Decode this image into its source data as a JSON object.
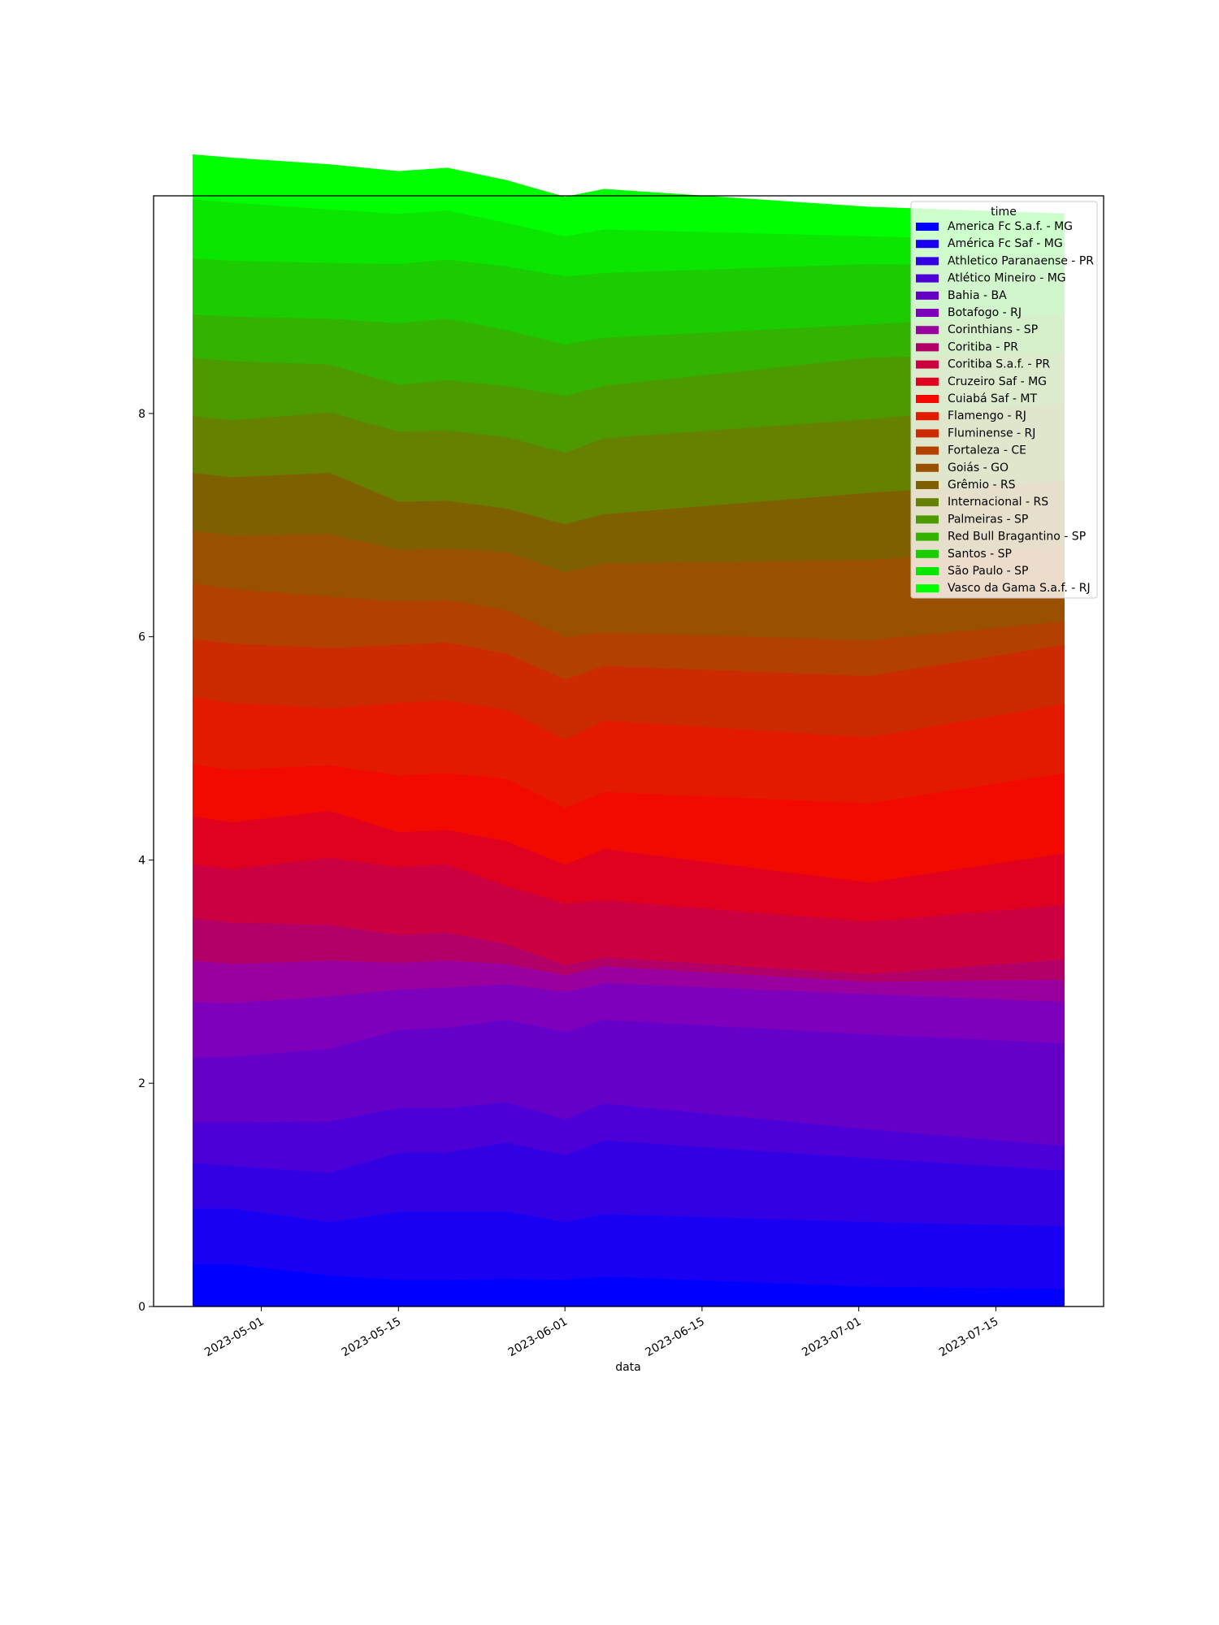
{
  "chart_data": {
    "type": "area",
    "stacked": true,
    "xlabel": "data",
    "ylabel": "",
    "xlim": [
      "2023-04-20",
      "2023-07-26"
    ],
    "ylim": [
      0,
      9.95
    ],
    "x_ticks": [
      "2023-05-01",
      "2023-05-15",
      "2023-06-01",
      "2023-06-15",
      "2023-07-01",
      "2023-07-15"
    ],
    "y_ticks": [
      0,
      2,
      4,
      6,
      8
    ],
    "grid": false,
    "legend": {
      "title": "time",
      "position": "top-right"
    },
    "x": [
      "2023-04-24",
      "2023-04-28",
      "2023-05-08",
      "2023-05-15",
      "2023-05-20",
      "2023-05-26",
      "2023-06-01",
      "2023-06-05",
      "2023-07-02",
      "2023-07-22"
    ],
    "series": [
      {
        "name": "America Fc S.a.f. - MG",
        "color": "#0000ff",
        "values": [
          0.38,
          0.38,
          0.28,
          0.24,
          0.24,
          0.25,
          0.24,
          0.27,
          0.18,
          0.16
        ]
      },
      {
        "name": "América Fc Saf - MG",
        "color": "#1a00f2",
        "values": [
          0.5,
          0.5,
          0.48,
          0.61,
          0.61,
          0.6,
          0.52,
          0.56,
          0.58,
          0.56
        ]
      },
      {
        "name": "Athletico Paranaense - PR",
        "color": "#3300e4",
        "values": [
          0.41,
          0.38,
          0.44,
          0.53,
          0.53,
          0.62,
          0.6,
          0.66,
          0.57,
          0.5
        ]
      },
      {
        "name": "Atlético Mineiro - MG",
        "color": "#4c00d7",
        "values": [
          0.36,
          0.39,
          0.46,
          0.4,
          0.4,
          0.36,
          0.32,
          0.33,
          0.26,
          0.22
        ]
      },
      {
        "name": "Bahia - BA",
        "color": "#6600c9",
        "values": [
          0.58,
          0.59,
          0.65,
          0.7,
          0.72,
          0.74,
          0.78,
          0.75,
          0.85,
          0.92
        ]
      },
      {
        "name": "Botafogo - RJ",
        "color": "#7f00bc",
        "values": [
          0.5,
          0.48,
          0.47,
          0.36,
          0.36,
          0.32,
          0.36,
          0.33,
          0.36,
          0.37
        ]
      },
      {
        "name": "Corinthians - SP",
        "color": "#99009d",
        "values": [
          0.37,
          0.35,
          0.32,
          0.24,
          0.24,
          0.18,
          0.15,
          0.15,
          0.11,
          0.2
        ]
      },
      {
        "name": "Coritiba - PR",
        "color": "#b20068",
        "values": [
          0.38,
          0.37,
          0.32,
          0.25,
          0.25,
          0.18,
          0.09,
          0.08,
          0.07,
          0.18
        ]
      },
      {
        "name": "Coritiba S.a.f. - PR",
        "color": "#cc0040",
        "values": [
          0.48,
          0.48,
          0.6,
          0.61,
          0.61,
          0.52,
          0.55,
          0.51,
          0.47,
          0.49
        ]
      },
      {
        "name": "Cruzeiro Saf - MG",
        "color": "#e0001f",
        "values": [
          0.43,
          0.42,
          0.42,
          0.31,
          0.31,
          0.4,
          0.35,
          0.46,
          0.35,
          0.46
        ]
      },
      {
        "name": "Cuiabá Saf - MT",
        "color": "#f20a00",
        "values": [
          0.47,
          0.47,
          0.41,
          0.51,
          0.51,
          0.56,
          0.51,
          0.51,
          0.71,
          0.72
        ]
      },
      {
        "name": "Flamengo - RJ",
        "color": "#e31a00",
        "values": [
          0.6,
          0.6,
          0.51,
          0.65,
          0.65,
          0.62,
          0.61,
          0.64,
          0.59,
          0.62
        ]
      },
      {
        "name": "Fluminense - RJ",
        "color": "#cc2a00",
        "values": [
          0.52,
          0.53,
          0.54,
          0.52,
          0.52,
          0.5,
          0.54,
          0.49,
          0.55,
          0.53
        ]
      },
      {
        "name": "Fortaleza - CE",
        "color": "#b24000",
        "values": [
          0.5,
          0.49,
          0.46,
          0.39,
          0.38,
          0.39,
          0.38,
          0.3,
          0.32,
          0.21
        ]
      },
      {
        "name": "Goiás - GO",
        "color": "#995000",
        "values": [
          0.47,
          0.48,
          0.56,
          0.46,
          0.46,
          0.52,
          0.58,
          0.62,
          0.72,
          0.68
        ]
      },
      {
        "name": "Grêmio - RS",
        "color": "#7f6000",
        "values": [
          0.52,
          0.52,
          0.55,
          0.43,
          0.43,
          0.39,
          0.43,
          0.44,
          0.6,
          0.58
        ]
      },
      {
        "name": "Internacional - RS",
        "color": "#668000",
        "values": [
          0.51,
          0.51,
          0.54,
          0.63,
          0.63,
          0.64,
          0.64,
          0.68,
          0.66,
          0.7
        ]
      },
      {
        "name": "Palmeiras - SP",
        "color": "#4c9900",
        "values": [
          0.52,
          0.53,
          0.43,
          0.42,
          0.45,
          0.46,
          0.51,
          0.47,
          0.55,
          0.45
        ]
      },
      {
        "name": "Red Bull Bragantino - SP",
        "color": "#33b200",
        "values": [
          0.39,
          0.4,
          0.41,
          0.55,
          0.55,
          0.5,
          0.46,
          0.43,
          0.3,
          0.35
        ]
      },
      {
        "name": "Santos - SP",
        "color": "#1acc00",
        "values": [
          0.5,
          0.5,
          0.5,
          0.53,
          0.53,
          0.57,
          0.61,
          0.58,
          0.54,
          0.42
        ]
      },
      {
        "name": "São Paulo - SP",
        "color": "#0ae600",
        "values": [
          0.53,
          0.52,
          0.48,
          0.45,
          0.44,
          0.39,
          0.36,
          0.39,
          0.25,
          0.22
        ]
      },
      {
        "name": "Vasco da Gama S.a.f. - RJ",
        "color": "#00ff00",
        "values": [
          0.4,
          0.4,
          0.4,
          0.38,
          0.38,
          0.38,
          0.35,
          0.36,
          0.26,
          0.25
        ]
      }
    ]
  }
}
